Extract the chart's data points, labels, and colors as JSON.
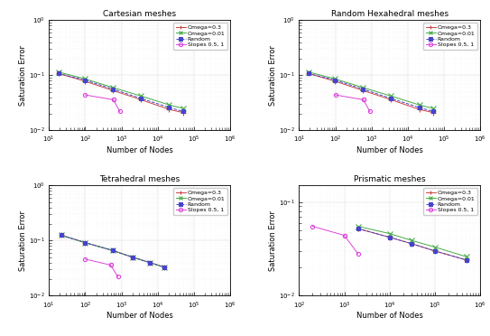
{
  "subplots": [
    {
      "title": "Cartesian meshes",
      "xlim": [
        10,
        1000000
      ],
      "ylim": [
        0.01,
        1
      ],
      "yticks": [
        0.01,
        0.1,
        1
      ],
      "series": [
        {
          "label": "Omega=0.3",
          "x": [
            18,
            98,
            578,
            3458,
            20738,
            50000
          ],
          "y": [
            0.108,
            0.078,
            0.053,
            0.036,
            0.024,
            0.021
          ],
          "color": "#cc4444",
          "linestyle": "-",
          "marker": "+",
          "markersize": 4
        },
        {
          "label": "Omega=0.01",
          "x": [
            18,
            98,
            578,
            3458,
            20738,
            50000
          ],
          "y": [
            0.115,
            0.086,
            0.06,
            0.042,
            0.029,
            0.025
          ],
          "color": "#44aa44",
          "linestyle": "-",
          "marker": "x",
          "markersize": 4
        },
        {
          "label": "Random",
          "x": [
            18,
            98,
            578,
            3458,
            20738,
            50000
          ],
          "y": [
            0.108,
            0.082,
            0.056,
            0.038,
            0.026,
            0.022
          ],
          "color": "#4444cc",
          "linestyle": "--",
          "marker": "s",
          "markersize": 3
        },
        {
          "label": "Slopes 0.5, 1",
          "x": [
            100,
            600,
            600,
            900
          ],
          "y": [
            0.044,
            0.036,
            0.036,
            0.022
          ],
          "color": "#dd44dd",
          "linestyle": "-",
          "marker": "o",
          "markersize": 3
        }
      ]
    },
    {
      "title": "Random Hexahedral meshes",
      "xlim": [
        10,
        1000000
      ],
      "ylim": [
        0.01,
        1
      ],
      "yticks": [
        0.01,
        0.1,
        1
      ],
      "series": [
        {
          "label": "Omega=0.3",
          "x": [
            18,
            98,
            578,
            3458,
            20738,
            50000
          ],
          "y": [
            0.108,
            0.078,
            0.053,
            0.036,
            0.024,
            0.021
          ],
          "color": "#cc4444",
          "linestyle": "-",
          "marker": "+",
          "markersize": 4
        },
        {
          "label": "Omega=0.01",
          "x": [
            18,
            98,
            578,
            3458,
            20738,
            50000
          ],
          "y": [
            0.115,
            0.086,
            0.06,
            0.042,
            0.029,
            0.025
          ],
          "color": "#44aa44",
          "linestyle": "-",
          "marker": "x",
          "markersize": 4
        },
        {
          "label": "Random",
          "x": [
            18,
            98,
            578,
            3458,
            20738,
            50000
          ],
          "y": [
            0.108,
            0.082,
            0.056,
            0.038,
            0.026,
            0.022
          ],
          "color": "#4444cc",
          "linestyle": "--",
          "marker": "s",
          "markersize": 3
        },
        {
          "label": "Slopes 0.5, 1",
          "x": [
            100,
            600,
            600,
            900
          ],
          "y": [
            0.044,
            0.036,
            0.036,
            0.022
          ],
          "color": "#dd44dd",
          "linestyle": "-",
          "marker": "o",
          "markersize": 3
        }
      ]
    },
    {
      "title": "Tetrahedral meshes",
      "xlim": [
        10,
        1000000
      ],
      "ylim": [
        0.01,
        1
      ],
      "yticks": [
        0.01,
        0.1,
        1
      ],
      "series": [
        {
          "label": "Omega=0.3",
          "x": [
            22,
            98,
            578,
            2000,
            6000,
            15000
          ],
          "y": [
            0.125,
            0.092,
            0.066,
            0.05,
            0.04,
            0.033
          ],
          "color": "#cc4444",
          "linestyle": "-",
          "marker": "+",
          "markersize": 4
        },
        {
          "label": "Omega=0.01",
          "x": [
            22,
            98,
            578,
            2000,
            6000,
            15000
          ],
          "y": [
            0.125,
            0.092,
            0.066,
            0.05,
            0.04,
            0.033
          ],
          "color": "#44aa44",
          "linestyle": "-",
          "marker": "x",
          "markersize": 4
        },
        {
          "label": "Random",
          "x": [
            22,
            98,
            578,
            2000,
            6000,
            15000
          ],
          "y": [
            0.125,
            0.092,
            0.066,
            0.05,
            0.04,
            0.033
          ],
          "color": "#4444cc",
          "linestyle": "--",
          "marker": "s",
          "markersize": 3
        },
        {
          "label": "Slopes 0.5, 1",
          "x": [
            100,
            500,
            500,
            800
          ],
          "y": [
            0.046,
            0.036,
            0.036,
            0.022
          ],
          "color": "#dd44dd",
          "linestyle": "-",
          "marker": "o",
          "markersize": 3
        }
      ]
    },
    {
      "title": "Prismatic meshes",
      "xlim": [
        100,
        1000000
      ],
      "ylim": [
        0.01,
        0.15
      ],
      "yticks": [
        0.01,
        0.1
      ],
      "series": [
        {
          "label": "Omega=0.3",
          "x": [
            2000,
            10000,
            30000,
            100000,
            500000
          ],
          "y": [
            0.052,
            0.042,
            0.036,
            0.03,
            0.024
          ],
          "color": "#cc4444",
          "linestyle": "-",
          "marker": "+",
          "markersize": 4
        },
        {
          "label": "Omega=0.01",
          "x": [
            2000,
            10000,
            30000,
            100000,
            500000
          ],
          "y": [
            0.055,
            0.046,
            0.039,
            0.033,
            0.026
          ],
          "color": "#44aa44",
          "linestyle": "-",
          "marker": "x",
          "markersize": 4
        },
        {
          "label": "Random",
          "x": [
            2000,
            10000,
            30000,
            100000,
            500000
          ],
          "y": [
            0.052,
            0.042,
            0.036,
            0.03,
            0.024
          ],
          "color": "#4444cc",
          "linestyle": "--",
          "marker": "s",
          "markersize": 3
        },
        {
          "label": "Slopes 0.5, 1",
          "x": [
            200,
            1000,
            1000,
            2000
          ],
          "y": [
            0.055,
            0.044,
            0.044,
            0.028
          ],
          "color": "#dd44dd",
          "linestyle": "-",
          "marker": "o",
          "markersize": 3
        }
      ]
    }
  ],
  "xlabel": "Number of Nodes",
  "ylabel": "Saturation Error",
  "legend_labels": [
    "Omega=0.3",
    "Omega=0.01",
    "Random",
    "Slopes 0.5, 1"
  ],
  "legend_colors": [
    "#cc4444",
    "#44aa44",
    "#4444cc",
    "#dd44dd"
  ],
  "legend_markers": [
    "+",
    "x",
    "s",
    "o"
  ],
  "legend_linestyles": [
    "-",
    "-",
    "--",
    "-"
  ]
}
